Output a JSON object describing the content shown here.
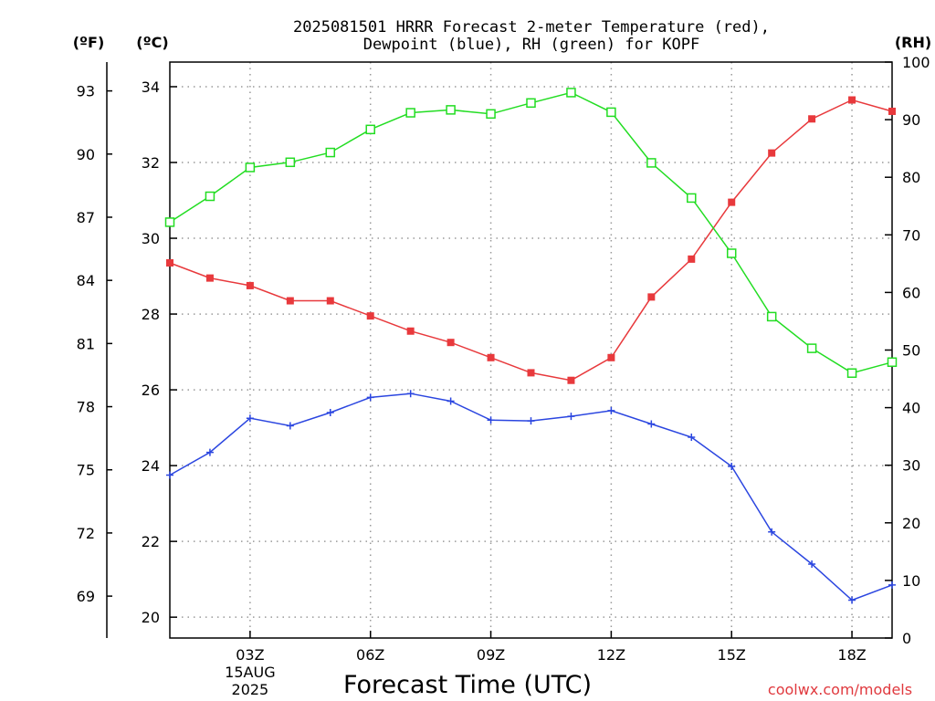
{
  "title_line1": "2025081501 HRRR Forecast 2-meter Temperature (red),",
  "title_line2": "Dewpoint (blue), RH (green) for KOPF",
  "unit_f": "(ºF)",
  "unit_c": "(ºC)",
  "unit_rh": "(RH)",
  "credit": "coolwx.com/models",
  "colors": {
    "temperature": "#e8393c",
    "dewpoint": "#2b46e0",
    "rh": "#22dd22",
    "grid": "#999999"
  },
  "chart_data": {
    "type": "line",
    "title": "2025081501 HRRR Forecast 2-meter Temperature (red), Dewpoint (blue), RH (green) for KOPF",
    "xlabel": "Forecast Time (UTC)",
    "x_hours": [
      1,
      2,
      3,
      4,
      5,
      6,
      7,
      8,
      9,
      10,
      11,
      12,
      13,
      14,
      15,
      16,
      17,
      18,
      19
    ],
    "xlim": [
      1,
      19
    ],
    "x_ticks": [
      {
        "hour": 3,
        "label": "03Z",
        "sub1": "15AUG",
        "sub2": "2025"
      },
      {
        "hour": 6,
        "label": "06Z"
      },
      {
        "hour": 9,
        "label": "09Z"
      },
      {
        "hour": 12,
        "label": "12Z"
      },
      {
        "hour": 15,
        "label": "15Z"
      },
      {
        "hour": 18,
        "label": "18Z"
      }
    ],
    "y_celsius": {
      "range": [
        19.45,
        34.65
      ],
      "ticks": [
        20,
        22,
        24,
        26,
        28,
        30,
        32,
        34
      ]
    },
    "y_fahrenheit_ticks": [
      69,
      72,
      75,
      78,
      81,
      84,
      87,
      90,
      93
    ],
    "y_rh": {
      "range": [
        0,
        100
      ],
      "ticks": [
        0,
        10,
        20,
        30,
        40,
        50,
        60,
        70,
        80,
        90,
        100
      ]
    },
    "series": [
      {
        "name": "Temperature",
        "axis": "celsius",
        "marker": "filled-square",
        "values": [
          29.35,
          28.95,
          28.75,
          28.35,
          28.35,
          27.95,
          27.55,
          27.25,
          26.85,
          26.45,
          26.25,
          26.85,
          28.45,
          29.45,
          30.95,
          32.25,
          33.15,
          33.65,
          33.35
        ]
      },
      {
        "name": "Dewpoint",
        "axis": "celsius",
        "marker": "plus",
        "values": [
          23.75,
          24.35,
          25.25,
          25.05,
          25.4,
          25.8,
          25.9,
          25.7,
          25.2,
          25.18,
          25.3,
          25.45,
          25.1,
          24.75,
          23.98,
          22.25,
          21.4,
          20.45,
          20.85
        ]
      },
      {
        "name": "RH",
        "axis": "rh",
        "marker": "open-square",
        "values": [
          72.2,
          76.7,
          81.7,
          82.6,
          84.3,
          88.3,
          91.2,
          91.7,
          91.0,
          92.9,
          94.7,
          91.3,
          82.5,
          76.4,
          66.8,
          55.8,
          50.3,
          46.0,
          47.9
        ]
      }
    ]
  }
}
